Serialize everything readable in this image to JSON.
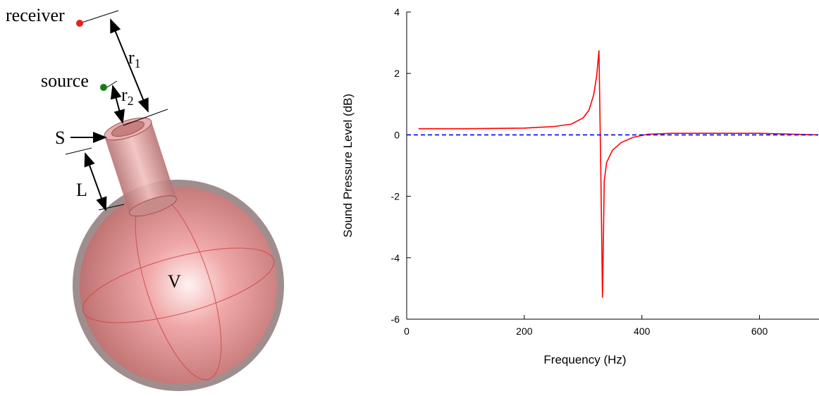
{
  "diagram": {
    "labels": {
      "receiver": "receiver",
      "source": "source",
      "r1": {
        "base": "r",
        "sub": "1"
      },
      "r2": {
        "base": "r",
        "sub": "2"
      },
      "S": "S",
      "L": "L",
      "V": "V"
    }
  },
  "chart_data": {
    "type": "line",
    "xlabel": "Frequency (Hz)",
    "ylabel": "Sound Pressure Level (dB)",
    "xlim": [
      0,
      700
    ],
    "xticks": [
      0,
      200,
      400,
      600
    ],
    "ylim": [
      -6,
      4
    ],
    "yticks": [
      -6,
      -4,
      -2,
      0,
      2,
      4
    ],
    "series": [
      {
        "color": "#ff0000",
        "style": "solid",
        "x": [
          20,
          100,
          200,
          250,
          280,
          300,
          310,
          318,
          323,
          327,
          330,
          333,
          336,
          340,
          350,
          365,
          385,
          410,
          450,
          500,
          600,
          700
        ],
        "values": [
          0.2,
          0.2,
          0.22,
          0.27,
          0.35,
          0.55,
          0.8,
          1.3,
          1.9,
          2.75,
          -1,
          -5.3,
          -1.5,
          -0.9,
          -0.5,
          -0.25,
          -0.08,
          0.02,
          0.05,
          0.05,
          0.05,
          0
        ]
      },
      {
        "color": "#0000ff",
        "style": "dashed",
        "x": [
          0,
          700
        ],
        "values": [
          0,
          0
        ]
      }
    ]
  }
}
